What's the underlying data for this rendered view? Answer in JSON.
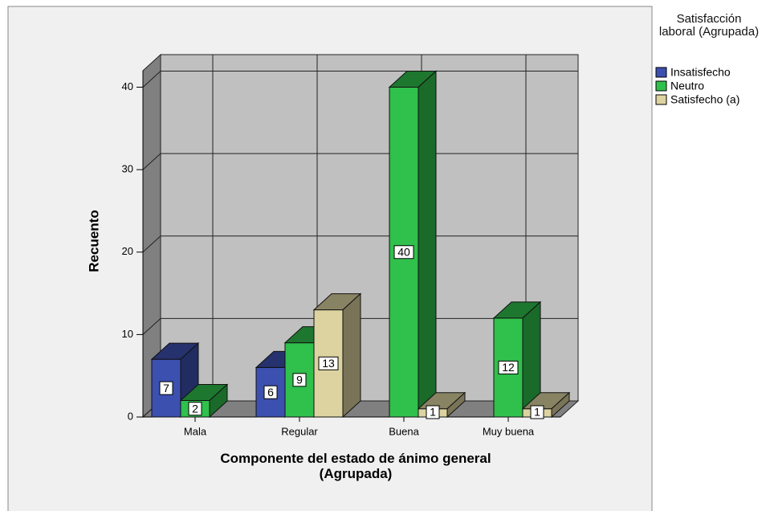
{
  "chart_data": {
    "type": "bar3d",
    "y_label": "Recuento",
    "x_label": "Componente del estado de ánimo general (Agrupada)",
    "legend_title": "Satisfacción laboral (Agrupada)",
    "legend": "right",
    "grid": true,
    "categories": [
      "Mala",
      "Regular",
      "Buena",
      "Muy buena"
    ],
    "series": [
      {
        "name": "Insatisfecho",
        "color": "#3c50b0",
        "values": [
          7,
          6,
          null,
          null
        ]
      },
      {
        "name": "Neutro",
        "color": "#30c04c",
        "values": [
          2,
          9,
          40,
          12
        ]
      },
      {
        "name": "Satisfecho (a)",
        "color": "#dcd3a0",
        "values": [
          null,
          13,
          1,
          1
        ]
      }
    ],
    "ylim": [
      0,
      42
    ],
    "yticks": [
      0,
      10,
      20,
      30,
      40
    ]
  }
}
